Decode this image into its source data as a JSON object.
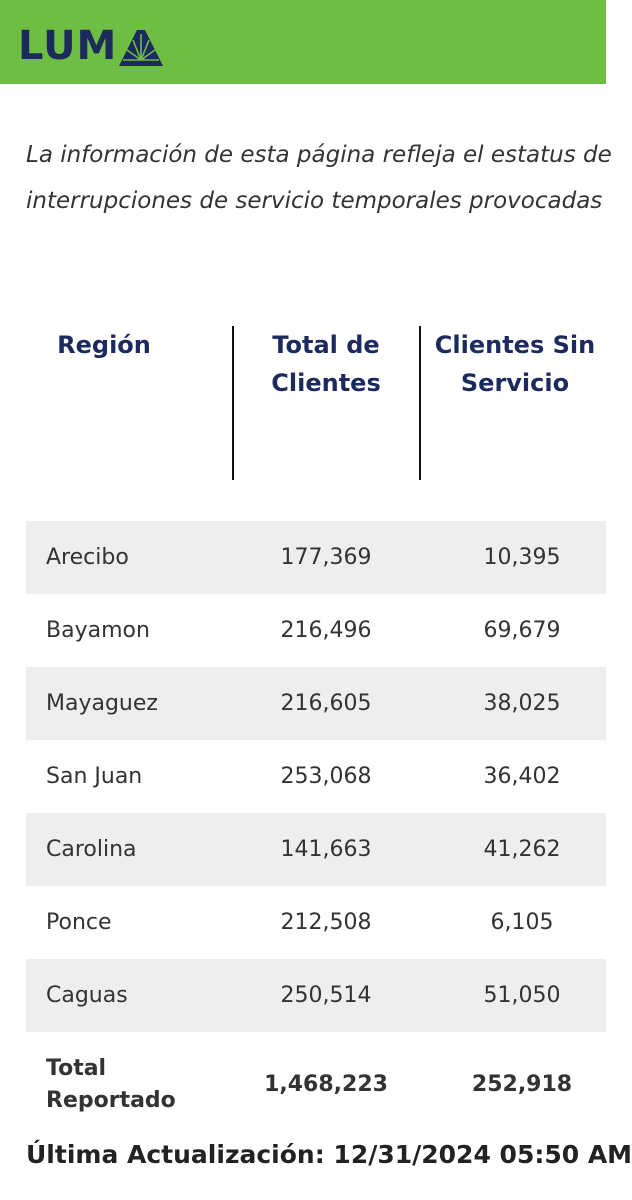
{
  "header": {
    "brand": "LUM"
  },
  "intro": {
    "line1": "La información de esta página refleja el estatus de",
    "line2": "interrupciones de servicio temporales provocadas"
  },
  "table": {
    "headers": [
      "Región",
      "Total de Clientes",
      "Clientes Sin Servicio"
    ],
    "header_lines": {
      "region": "Región",
      "total_1": "Total de",
      "total_2": "Clientes",
      "sin_1": "Clientes Sin",
      "sin_2": "Servicio"
    },
    "rows": [
      {
        "region": "Arecibo",
        "total": "177,369",
        "sin": "10,395"
      },
      {
        "region": "Bayamon",
        "total": "216,496",
        "sin": "69,679"
      },
      {
        "region": "Mayaguez",
        "total": "216,605",
        "sin": "38,025"
      },
      {
        "region": "San Juan",
        "total": "253,068",
        "sin": "36,402"
      },
      {
        "region": "Carolina",
        "total": "141,663",
        "sin": "41,262"
      },
      {
        "region": "Ponce",
        "total": "212,508",
        "sin": "6,105"
      },
      {
        "region": "Caguas",
        "total": "250,514",
        "sin": "51,050"
      }
    ],
    "total_row": {
      "label_1": "Total",
      "label_2": "Reportado",
      "total": "1,468,223",
      "sin": "252,918"
    }
  },
  "footer": {
    "last_update": "Última Actualización: 12/31/2024 05:50 AM"
  },
  "colors": {
    "brand_green": "#6fbe44",
    "navy": "#1c2a5e",
    "row_shade": "#eeeeee"
  }
}
